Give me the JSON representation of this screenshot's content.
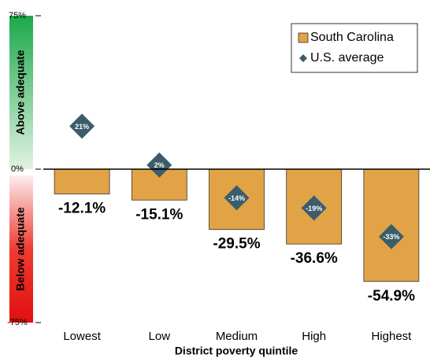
{
  "chart_data": {
    "type": "bar",
    "x_label": "District poverty quintile",
    "categories": [
      "Lowest",
      "Low",
      "Medium",
      "High",
      "Highest"
    ],
    "series": [
      {
        "name": "South Carolina",
        "color": "#e2a246",
        "values": [
          -12.1,
          -15.1,
          -29.5,
          -36.6,
          -54.9
        ],
        "value_labels": [
          "-12.1%",
          "-15.1%",
          "-29.5%",
          "-36.6%",
          "-54.9%"
        ]
      },
      {
        "name": "U.S. average",
        "color": "#3b5d6b",
        "marker": "diamond",
        "values": [
          21,
          2,
          -14,
          -19,
          -33
        ],
        "value_labels": [
          "21%",
          "2%",
          "-14%",
          "-19%",
          "-33%"
        ]
      }
    ],
    "ylim": [
      -75,
      75
    ],
    "yticks": [
      {
        "value": 75,
        "label": "75%"
      },
      {
        "value": 0,
        "label": "0%"
      },
      {
        "value": -75,
        "label": "-75%"
      }
    ],
    "annotations": [
      "Above adequate",
      "Below adequate"
    ],
    "legend": "upper right"
  }
}
